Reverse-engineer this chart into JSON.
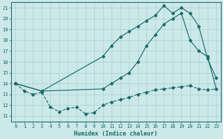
{
  "xlabel": "Humidex (Indice chaleur)",
  "bg_color": "#cce8e8",
  "grid_color": "#aacfcf",
  "line_color": "#1a6b6b",
  "xlim": [
    -0.5,
    23.5
  ],
  "ylim": [
    10.5,
    21.5
  ],
  "yticks": [
    11,
    12,
    13,
    14,
    15,
    16,
    17,
    18,
    19,
    20,
    21
  ],
  "xticks": [
    0,
    1,
    2,
    3,
    4,
    5,
    6,
    7,
    8,
    9,
    10,
    11,
    12,
    13,
    14,
    15,
    16,
    17,
    18,
    19,
    20,
    21,
    22,
    23
  ],
  "line_dashed_x": [
    0,
    1,
    2,
    3,
    4,
    5,
    6,
    7,
    8,
    9,
    10,
    11,
    12,
    13,
    14,
    15,
    16,
    17,
    18,
    19,
    20,
    21,
    22,
    23
  ],
  "line_dashed_y": [
    14.0,
    13.3,
    13.0,
    13.2,
    11.8,
    11.4,
    11.7,
    11.8,
    11.2,
    11.3,
    12.0,
    12.3,
    12.5,
    12.7,
    13.0,
    13.2,
    13.4,
    13.5,
    13.6,
    13.7,
    13.8,
    13.5,
    13.4,
    13.5
  ],
  "line_upper_x": [
    0,
    3,
    10,
    11,
    12,
    13,
    14,
    15,
    16,
    17,
    18,
    19,
    20,
    21,
    22,
    23
  ],
  "line_upper_y": [
    14.0,
    13.3,
    16.5,
    17.5,
    18.3,
    18.8,
    19.3,
    19.8,
    20.3,
    21.2,
    20.5,
    21.0,
    20.5,
    19.3,
    16.3,
    14.5
  ],
  "line_diag_x": [
    0,
    3,
    10,
    11,
    12,
    13,
    14,
    15,
    16,
    17,
    18,
    19,
    20,
    21,
    22,
    23
  ],
  "line_diag_y": [
    14.0,
    13.3,
    13.5,
    14.0,
    14.5,
    15.0,
    16.0,
    17.5,
    18.5,
    19.5,
    20.0,
    20.5,
    18.0,
    17.0,
    16.5,
    13.5
  ]
}
